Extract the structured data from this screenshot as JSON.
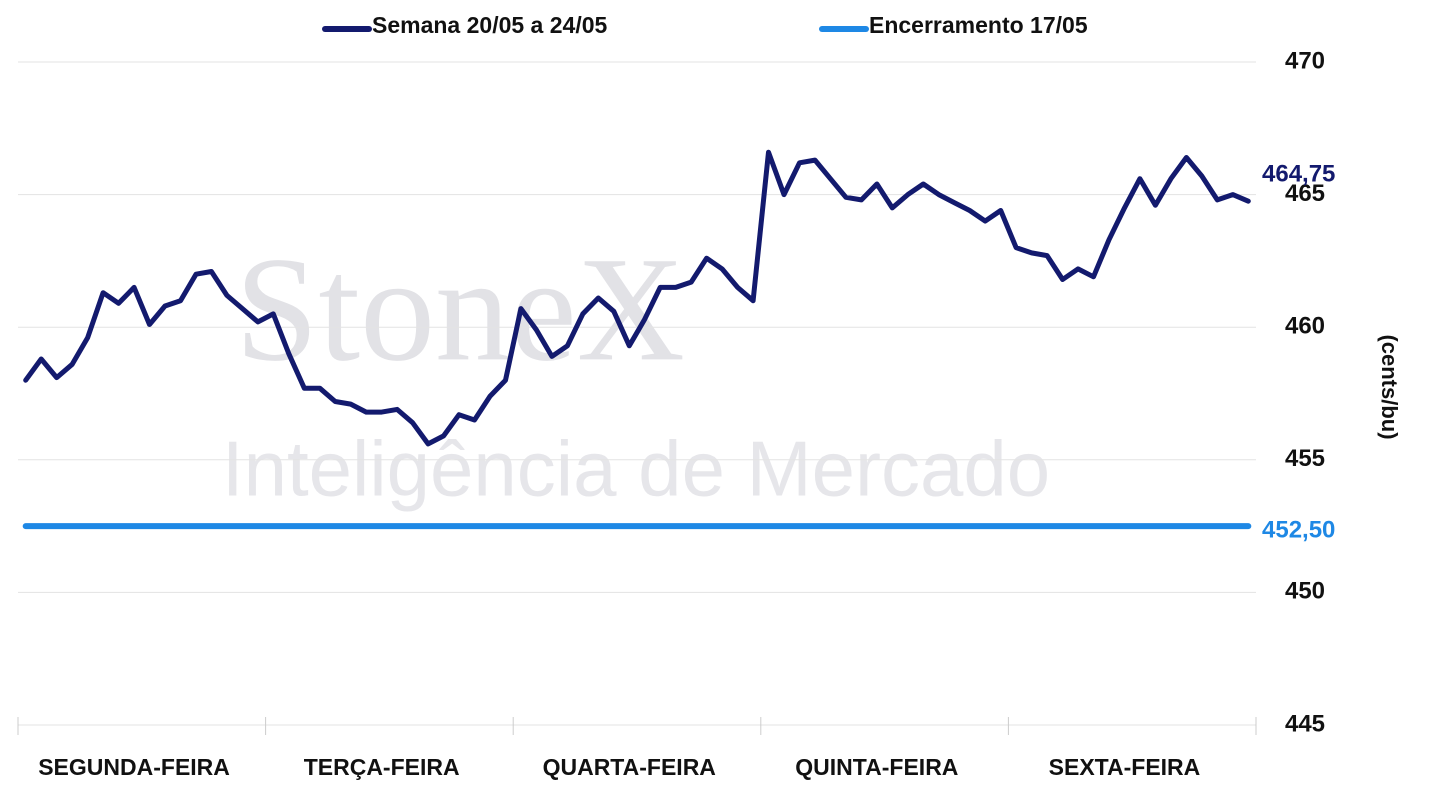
{
  "chart_data": {
    "type": "line",
    "watermark": [
      "StoneX",
      "Inteligência de Mercado"
    ],
    "y_axis_label": "(cents/bu)",
    "categories": [
      null,
      null,
      null,
      null,
      null,
      null,
      null,
      "SEGUNDA-FEIRA",
      null,
      null,
      null,
      null,
      null,
      null,
      null,
      null,
      null,
      null,
      null,
      null,
      null,
      null,
      null,
      "TERÇA-FEIRA",
      null,
      null,
      null,
      null,
      null,
      null,
      null,
      null,
      null,
      null,
      null,
      null,
      null,
      null,
      null,
      "QUARTA-FEIRA",
      null,
      null,
      null,
      null,
      null,
      null,
      null,
      null,
      null,
      null,
      null,
      null,
      null,
      null,
      null,
      "QUINTA-FEIRA",
      null,
      null,
      null,
      null,
      null,
      null,
      null,
      null,
      null,
      null,
      null,
      null,
      null,
      null,
      null,
      "SEXTA-FEIRA",
      null,
      null,
      null,
      null,
      null,
      null,
      null,
      null
    ],
    "series": [
      {
        "name": "Semana 20/05 a 24/05",
        "color": "#131a6e",
        "values": [
          458.0,
          458.8,
          458.1,
          458.6,
          459.6,
          461.3,
          460.9,
          461.5,
          460.1,
          460.8,
          461.0,
          462.0,
          462.1,
          461.2,
          460.7,
          460.2,
          460.5,
          459.0,
          457.7,
          457.7,
          457.2,
          457.1,
          456.8,
          456.8,
          456.9,
          456.4,
          455.6,
          455.9,
          456.7,
          456.5,
          457.4,
          458.0,
          460.7,
          459.9,
          458.9,
          459.3,
          460.5,
          461.1,
          460.6,
          459.3,
          460.3,
          461.5,
          461.5,
          461.7,
          462.6,
          462.2,
          461.5,
          461.0,
          466.6,
          465.0,
          466.2,
          466.3,
          465.6,
          464.9,
          464.8,
          465.4,
          464.5,
          465.0,
          465.4,
          465.0,
          464.7,
          464.4,
          464.0,
          464.4,
          463.0,
          462.8,
          462.7,
          461.8,
          462.2,
          461.9,
          463.3,
          464.5,
          465.6,
          464.6,
          465.6,
          466.4,
          465.7,
          464.8,
          465.0,
          464.75
        ],
        "value_labels": [
          null,
          null,
          null,
          null,
          null,
          null,
          null,
          null,
          null,
          null,
          null,
          null,
          null,
          null,
          null,
          null,
          null,
          null,
          null,
          null,
          null,
          null,
          null,
          null,
          null,
          null,
          null,
          null,
          null,
          null,
          null,
          null,
          null,
          null,
          null,
          null,
          null,
          null,
          null,
          null,
          null,
          null,
          null,
          null,
          null,
          null,
          null,
          null,
          null,
          null,
          null,
          null,
          null,
          null,
          null,
          null,
          null,
          null,
          null,
          null,
          null,
          null,
          null,
          null,
          null,
          null,
          null,
          null,
          null,
          null,
          null,
          null,
          null,
          null,
          null,
          null,
          null,
          null,
          null,
          "464,75"
        ]
      },
      {
        "name": "Encerramento 17/05",
        "color": "#1e88e5",
        "values": [
          452.5,
          452.5,
          452.5,
          452.5,
          452.5,
          452.5,
          452.5,
          452.5,
          452.5,
          452.5,
          452.5,
          452.5,
          452.5,
          452.5,
          452.5,
          452.5,
          452.5,
          452.5,
          452.5,
          452.5,
          452.5,
          452.5,
          452.5,
          452.5,
          452.5,
          452.5,
          452.5,
          452.5,
          452.5,
          452.5,
          452.5,
          452.5,
          452.5,
          452.5,
          452.5,
          452.5,
          452.5,
          452.5,
          452.5,
          452.5,
          452.5,
          452.5,
          452.5,
          452.5,
          452.5,
          452.5,
          452.5,
          452.5,
          452.5,
          452.5,
          452.5,
          452.5,
          452.5,
          452.5,
          452.5,
          452.5,
          452.5,
          452.5,
          452.5,
          452.5,
          452.5,
          452.5,
          452.5,
          452.5,
          452.5,
          452.5,
          452.5,
          452.5,
          452.5,
          452.5,
          452.5,
          452.5,
          452.5,
          452.5,
          452.5,
          452.5,
          452.5,
          452.5,
          452.5,
          452.5
        ],
        "value_labels": [
          null,
          null,
          null,
          null,
          null,
          null,
          null,
          null,
          null,
          null,
          null,
          null,
          null,
          null,
          null,
          null,
          null,
          null,
          null,
          null,
          null,
          null,
          null,
          null,
          null,
          null,
          null,
          null,
          null,
          null,
          null,
          null,
          null,
          null,
          null,
          null,
          null,
          null,
          null,
          null,
          null,
          null,
          null,
          null,
          null,
          null,
          null,
          null,
          null,
          null,
          null,
          null,
          null,
          null,
          null,
          null,
          null,
          null,
          null,
          null,
          null,
          null,
          null,
          null,
          null,
          null,
          null,
          null,
          null,
          null,
          null,
          null,
          null,
          null,
          null,
          null,
          null,
          null,
          null,
          "452,50"
        ]
      }
    ],
    "ylim": [
      445,
      470
    ],
    "yticks": [
      445,
      450,
      455,
      460,
      465,
      470
    ],
    "grid": true
  }
}
